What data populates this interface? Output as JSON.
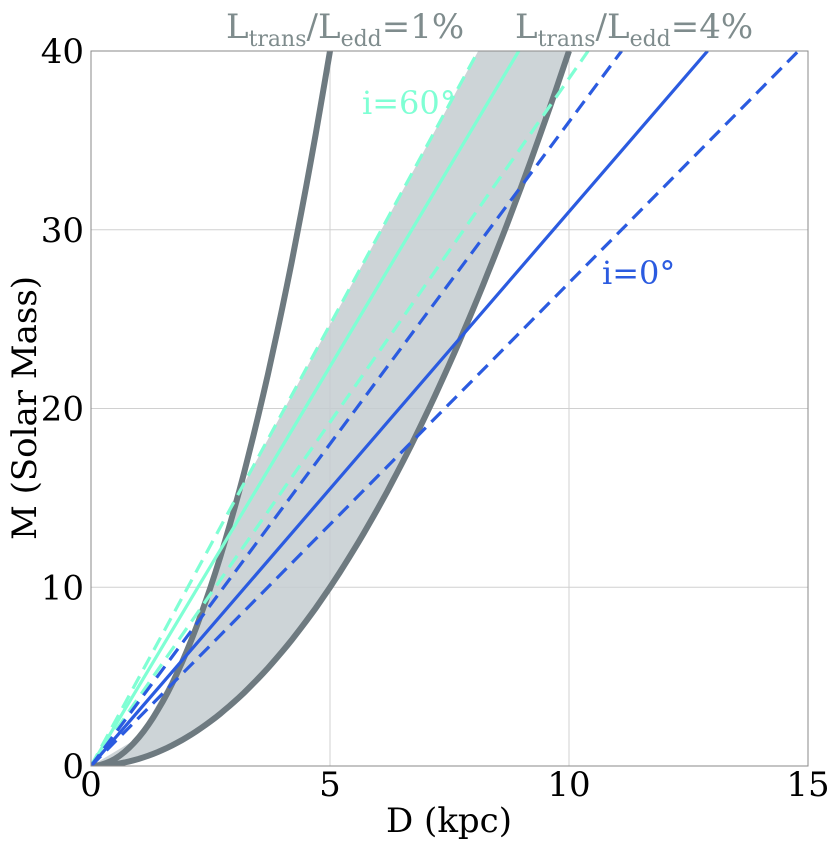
{
  "chart_data": {
    "type": "line",
    "xlabel": "D (kpc)",
    "ylabel": "M (Solar Mass)",
    "xlim": [
      0,
      15
    ],
    "ylim": [
      0,
      40
    ],
    "xticks": [
      0,
      5,
      10,
      15
    ],
    "yticks": [
      0,
      10,
      20,
      30,
      40
    ],
    "xtick_labels": [
      "0",
      "5",
      "10",
      "15"
    ],
    "ytick_labels": [
      "0",
      "10",
      "20",
      "30",
      "40"
    ],
    "grid": true,
    "legend": "none",
    "annotations": [
      {
        "text": "i=60°",
        "color": "#7fffd4"
      },
      {
        "text": "i=0°",
        "color": "#2b5be0"
      }
    ],
    "top_labels": [
      {
        "parts": [
          "L",
          "trans",
          "/L",
          "edd",
          "=1%"
        ],
        "color": "#7f8c8d"
      },
      {
        "parts": [
          "L",
          "trans",
          "/L",
          "edd",
          "=4%"
        ],
        "color": "#7f8c8d"
      }
    ],
    "colors": {
      "gray_curve": "#6e7a80",
      "shade": "#c4cdd0",
      "i60": "#7fffd4",
      "i0": "#2b5be0",
      "label_gray": "#7f8c8d"
    },
    "series": [
      {
        "style": "solid",
        "color": "#6e7a80",
        "x": [
          0,
          1,
          2,
          3,
          4,
          5
        ],
        "y": [
          0,
          1.6,
          6.4,
          14.4,
          25.6,
          40.0
        ]
      },
      {
        "style": "solid",
        "color": "#6e7a80",
        "x": [
          0,
          1,
          2,
          3,
          4,
          5,
          6,
          7,
          8,
          9,
          10
        ],
        "y": [
          0,
          0.4,
          1.6,
          3.6,
          6.4,
          10.0,
          14.4,
          19.6,
          25.6,
          32.4,
          40.0
        ]
      },
      {
        "style": "solid",
        "color": "#7fffd4",
        "x": [
          0,
          8.95
        ],
        "y": [
          0,
          40
        ]
      },
      {
        "style": "dashed",
        "color": "#7fffd4",
        "x": [
          0,
          8.1
        ],
        "y": [
          0,
          40
        ]
      },
      {
        "style": "dashed",
        "color": "#7fffd4",
        "x": [
          0,
          10.4
        ],
        "y": [
          0,
          40
        ]
      },
      {
        "style": "solid",
        "color": "#2b5be0",
        "x": [
          0,
          12.9
        ],
        "y": [
          0,
          40
        ]
      },
      {
        "style": "dashed",
        "color": "#2b5be0",
        "x": [
          0,
          11.1
        ],
        "y": [
          0,
          40
        ]
      },
      {
        "style": "dashed",
        "color": "#2b5be0",
        "x": [
          0,
          14.8
        ],
        "y": [
          0,
          40
        ]
      }
    ],
    "shaded_region": {
      "between": [
        "i=60° upper dashed line (x=8.1 at M=40)",
        "L_trans/L_edd=1% curve",
        "L_trans/L_edd=4% curve"
      ],
      "color": "#c4cdd0"
    }
  }
}
